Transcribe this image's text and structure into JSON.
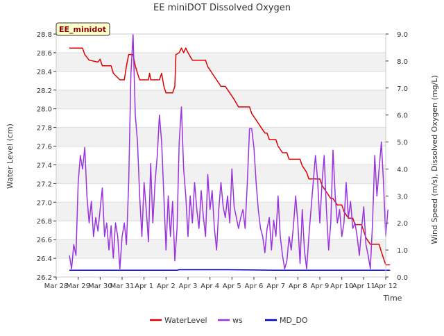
{
  "chart_data": {
    "type": "line",
    "title": "EE miniDOT Dissolved Oxygen",
    "badge": "EE_minidot",
    "xlabel": "Time",
    "ylabel_left": "Water Level (cm)",
    "ylabel_right": "Wind Speed (m/s), Dissolved Oxygen (mg/L)",
    "x_range": [
      0,
      15
    ],
    "x_ticks": [
      "Mar 28",
      "Mar 29",
      "Mar 30",
      "Mar 31",
      "Apr 1",
      "Apr 2",
      "Apr 3",
      "Apr 4",
      "Apr 5",
      "Apr 6",
      "Apr 7",
      "Apr 8",
      "Apr 9",
      "Apr 10",
      "Apr 11",
      "Apr 12"
    ],
    "ylim_left": [
      26.2,
      28.8
    ],
    "left_ticks": [
      "26.2",
      "26.4",
      "26.6",
      "26.8",
      "27.0",
      "27.2",
      "27.4",
      "27.6",
      "27.8",
      "28.0",
      "28.2",
      "28.4",
      "28.6",
      "28.8"
    ],
    "ylim_right": [
      0,
      9
    ],
    "right_ticks": [
      "0.0",
      "1.0",
      "2.0",
      "3.0",
      "4.0",
      "5.0",
      "6.0",
      "7.0",
      "8.0",
      "9.0"
    ],
    "grid": true,
    "legend_position": "bottom-center",
    "series": [
      {
        "name": "WaterLevel",
        "color": "#dd0000",
        "axis": "left",
        "points": [
          [
            0.6,
            28.65
          ],
          [
            1.2,
            28.65
          ],
          [
            1.3,
            28.58
          ],
          [
            1.5,
            28.52
          ],
          [
            1.9,
            28.5
          ],
          [
            2.0,
            28.53
          ],
          [
            2.1,
            28.46
          ],
          [
            2.5,
            28.46
          ],
          [
            2.6,
            28.38
          ],
          [
            2.9,
            28.31
          ],
          [
            3.1,
            28.31
          ],
          [
            3.2,
            28.46
          ],
          [
            3.3,
            28.58
          ],
          [
            3.5,
            28.58
          ],
          [
            3.6,
            28.46
          ],
          [
            3.7,
            28.38
          ],
          [
            3.8,
            28.31
          ],
          [
            4.2,
            28.31
          ],
          [
            4.25,
            28.38
          ],
          [
            4.3,
            28.31
          ],
          [
            4.7,
            28.31
          ],
          [
            4.8,
            28.38
          ],
          [
            4.9,
            28.24
          ],
          [
            5.0,
            28.17
          ],
          [
            5.3,
            28.17
          ],
          [
            5.4,
            28.24
          ],
          [
            5.45,
            28.58
          ],
          [
            5.6,
            28.6
          ],
          [
            5.7,
            28.65
          ],
          [
            5.8,
            28.6
          ],
          [
            5.9,
            28.65
          ],
          [
            6.0,
            28.6
          ],
          [
            6.2,
            28.52
          ],
          [
            6.8,
            28.52
          ],
          [
            6.9,
            28.45
          ],
          [
            7.1,
            28.38
          ],
          [
            7.3,
            28.31
          ],
          [
            7.5,
            28.24
          ],
          [
            7.7,
            28.24
          ],
          [
            7.9,
            28.17
          ],
          [
            8.1,
            28.1
          ],
          [
            8.3,
            28.02
          ],
          [
            8.8,
            28.02
          ],
          [
            8.9,
            27.95
          ],
          [
            9.1,
            27.88
          ],
          [
            9.3,
            27.81
          ],
          [
            9.5,
            27.74
          ],
          [
            9.6,
            27.74
          ],
          [
            9.7,
            27.67
          ],
          [
            10.0,
            27.67
          ],
          [
            10.1,
            27.6
          ],
          [
            10.3,
            27.53
          ],
          [
            10.5,
            27.53
          ],
          [
            10.6,
            27.46
          ],
          [
            11.1,
            27.46
          ],
          [
            11.2,
            27.39
          ],
          [
            11.4,
            27.32
          ],
          [
            11.5,
            27.25
          ],
          [
            12.0,
            27.25
          ],
          [
            12.1,
            27.18
          ],
          [
            12.3,
            27.11
          ],
          [
            12.5,
            27.04
          ],
          [
            12.6,
            27.04
          ],
          [
            12.8,
            26.97
          ],
          [
            13.0,
            26.97
          ],
          [
            13.1,
            26.9
          ],
          [
            13.3,
            26.83
          ],
          [
            13.5,
            26.83
          ],
          [
            13.6,
            26.76
          ],
          [
            13.9,
            26.76
          ],
          [
            14.0,
            26.69
          ],
          [
            14.1,
            26.62
          ],
          [
            14.3,
            26.55
          ],
          [
            14.7,
            26.55
          ],
          [
            14.8,
            26.47
          ],
          [
            14.9,
            26.4
          ],
          [
            15.0,
            26.33
          ],
          [
            15.2,
            26.33
          ]
        ]
      },
      {
        "name": "ws",
        "color": "#9a32e0",
        "axis": "right",
        "points": [
          [
            0.6,
            0.8
          ],
          [
            0.7,
            0.3
          ],
          [
            0.8,
            1.2
          ],
          [
            0.9,
            0.8
          ],
          [
            1.0,
            3.5
          ],
          [
            1.1,
            4.5
          ],
          [
            1.2,
            4
          ],
          [
            1.3,
            4.8
          ],
          [
            1.4,
            3
          ],
          [
            1.5,
            2
          ],
          [
            1.6,
            2.8
          ],
          [
            1.7,
            1.5
          ],
          [
            1.8,
            2.2
          ],
          [
            1.9,
            1.7
          ],
          [
            2.0,
            2.5
          ],
          [
            2.1,
            3.3
          ],
          [
            2.2,
            1.5
          ],
          [
            2.3,
            2
          ],
          [
            2.4,
            1
          ],
          [
            2.5,
            1.9
          ],
          [
            2.6,
            0.7
          ],
          [
            2.7,
            2
          ],
          [
            2.8,
            1.5
          ],
          [
            2.9,
            0.3
          ],
          [
            3.0,
            1.5
          ],
          [
            3.1,
            2
          ],
          [
            3.2,
            1.2
          ],
          [
            3.3,
            3.5
          ],
          [
            3.4,
            7.5
          ],
          [
            3.5,
            9
          ],
          [
            3.6,
            6
          ],
          [
            3.7,
            5
          ],
          [
            3.8,
            3
          ],
          [
            3.9,
            1.5
          ],
          [
            4.0,
            3.5
          ],
          [
            4.1,
            2.5
          ],
          [
            4.2,
            1.3
          ],
          [
            4.3,
            4.2
          ],
          [
            4.4,
            2
          ],
          [
            4.5,
            3.5
          ],
          [
            4.6,
            4.5
          ],
          [
            4.7,
            6
          ],
          [
            4.8,
            5
          ],
          [
            4.9,
            3
          ],
          [
            5.0,
            1
          ],
          [
            5.1,
            3
          ],
          [
            5.2,
            1.5
          ],
          [
            5.3,
            2.8
          ],
          [
            5.4,
            0.6
          ],
          [
            5.5,
            1.8
          ],
          [
            5.6,
            5
          ],
          [
            5.7,
            6.3
          ],
          [
            5.8,
            4
          ],
          [
            5.9,
            3
          ],
          [
            6.0,
            1.5
          ],
          [
            6.1,
            3
          ],
          [
            6.2,
            2
          ],
          [
            6.3,
            3.5
          ],
          [
            6.4,
            2.5
          ],
          [
            6.5,
            1.8
          ],
          [
            6.6,
            3.2
          ],
          [
            6.7,
            2.2
          ],
          [
            6.8,
            1.5
          ],
          [
            6.9,
            3.8
          ],
          [
            7.0,
            2.5
          ],
          [
            7.1,
            3.2
          ],
          [
            7.2,
            1.8
          ],
          [
            7.3,
            1.0
          ],
          [
            7.4,
            2.5
          ],
          [
            7.5,
            3.5
          ],
          [
            7.6,
            2.6
          ],
          [
            7.7,
            2.2
          ],
          [
            7.8,
            3
          ],
          [
            7.9,
            2
          ],
          [
            8.0,
            4.0
          ],
          [
            8.1,
            2.6
          ],
          [
            8.2,
            2.2
          ],
          [
            8.3,
            1.8
          ],
          [
            8.4,
            2.2
          ],
          [
            8.5,
            2.5
          ],
          [
            8.6,
            1.8
          ],
          [
            8.7,
            3.5
          ],
          [
            8.8,
            5.5
          ],
          [
            8.9,
            5.5
          ],
          [
            9.0,
            4.8
          ],
          [
            9.1,
            3.5
          ],
          [
            9.2,
            2.5
          ],
          [
            9.3,
            1.8
          ],
          [
            9.4,
            1.5
          ],
          [
            9.5,
            0.9
          ],
          [
            9.6,
            1.8
          ],
          [
            9.7,
            2.2
          ],
          [
            9.8,
            1.0
          ],
          [
            9.9,
            2.1
          ],
          [
            10.0,
            1.5
          ],
          [
            10.1,
            3.0
          ],
          [
            10.2,
            1.5
          ],
          [
            10.3,
            0.8
          ],
          [
            10.4,
            0.3
          ],
          [
            10.5,
            0.6
          ],
          [
            10.6,
            1.5
          ],
          [
            10.7,
            1.0
          ],
          [
            10.8,
            1.9
          ],
          [
            10.9,
            3.0
          ],
          [
            11.0,
            2.0
          ],
          [
            11.1,
            0.5
          ],
          [
            11.2,
            2.5
          ],
          [
            11.3,
            1.0
          ],
          [
            11.4,
            0.3
          ],
          [
            11.5,
            1.5
          ],
          [
            11.6,
            2.5
          ],
          [
            11.7,
            3.5
          ],
          [
            11.8,
            4.5
          ],
          [
            11.9,
            3.6
          ],
          [
            12.0,
            2.0
          ],
          [
            12.1,
            3.5
          ],
          [
            12.2,
            4.5
          ],
          [
            12.3,
            2.5
          ],
          [
            12.4,
            1.0
          ],
          [
            12.5,
            2.0
          ],
          [
            12.6,
            4.7
          ],
          [
            12.7,
            3.0
          ],
          [
            12.8,
            2.0
          ],
          [
            12.9,
            2.5
          ],
          [
            13.0,
            1.5
          ],
          [
            13.1,
            2.0
          ],
          [
            13.2,
            3.5
          ],
          [
            13.3,
            2.2
          ],
          [
            13.4,
            2.8
          ],
          [
            13.5,
            1.8
          ],
          [
            13.6,
            2.0
          ],
          [
            13.7,
            1.5
          ],
          [
            13.8,
            0.8
          ],
          [
            13.9,
            1.8
          ],
          [
            14.0,
            2.6
          ],
          [
            14.1,
            1.2
          ],
          [
            14.2,
            0.8
          ],
          [
            14.3,
            0.3
          ],
          [
            14.4,
            2.0
          ],
          [
            14.5,
            4.5
          ],
          [
            14.6,
            3.0
          ],
          [
            14.7,
            4.0
          ],
          [
            14.8,
            5.0
          ],
          [
            14.9,
            3.5
          ],
          [
            15.0,
            1.5
          ],
          [
            15.1,
            2.5
          ]
        ]
      },
      {
        "name": "MD_DO",
        "color": "#0000bb",
        "axis": "right",
        "points": [
          [
            0.6,
            0.25
          ],
          [
            5.5,
            0.25
          ],
          [
            5.6,
            0.27
          ],
          [
            7.6,
            0.27
          ],
          [
            7.7,
            0.27
          ],
          [
            9.0,
            0.26
          ],
          [
            10.0,
            0.25
          ],
          [
            13.0,
            0.25
          ],
          [
            15.2,
            0.25
          ]
        ]
      }
    ]
  }
}
